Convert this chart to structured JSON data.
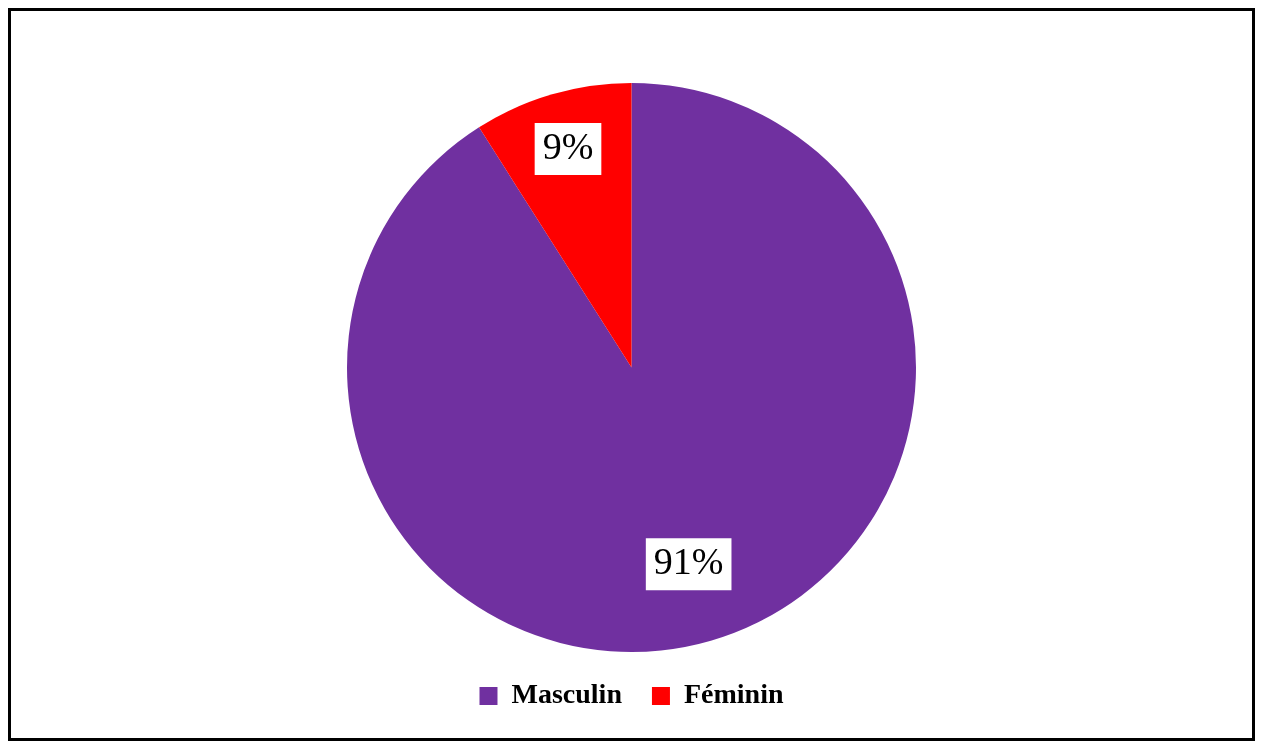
{
  "chart_data": {
    "type": "pie",
    "categories": [
      "Masculin",
      "Féminin"
    ],
    "values": [
      91,
      9
    ],
    "value_labels": [
      "91%",
      "9%"
    ],
    "colors": [
      "#7030a0",
      "#ff0000"
    ],
    "legend": "bottom"
  }
}
